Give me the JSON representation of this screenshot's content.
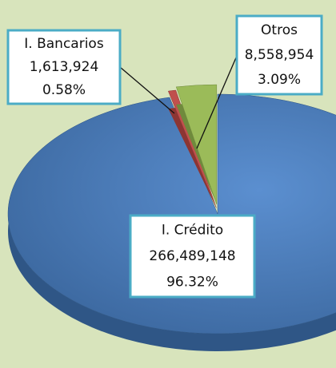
{
  "chart_data": {
    "type": "pie",
    "categories": [
      "I. Crédito",
      "I. Bancarios",
      "Otros"
    ],
    "values": [
      266489148,
      1613924,
      8558954
    ],
    "value_labels": [
      "266,489,148",
      "1,613,924",
      "8,558,954"
    ],
    "percents": [
      96.32,
      0.58,
      3.09
    ],
    "percent_labels": [
      "96.32%",
      "0.58%",
      "3.09%"
    ],
    "colors": [
      "#4f81bd",
      "#c0504d",
      "#9bbb59"
    ]
  }
}
